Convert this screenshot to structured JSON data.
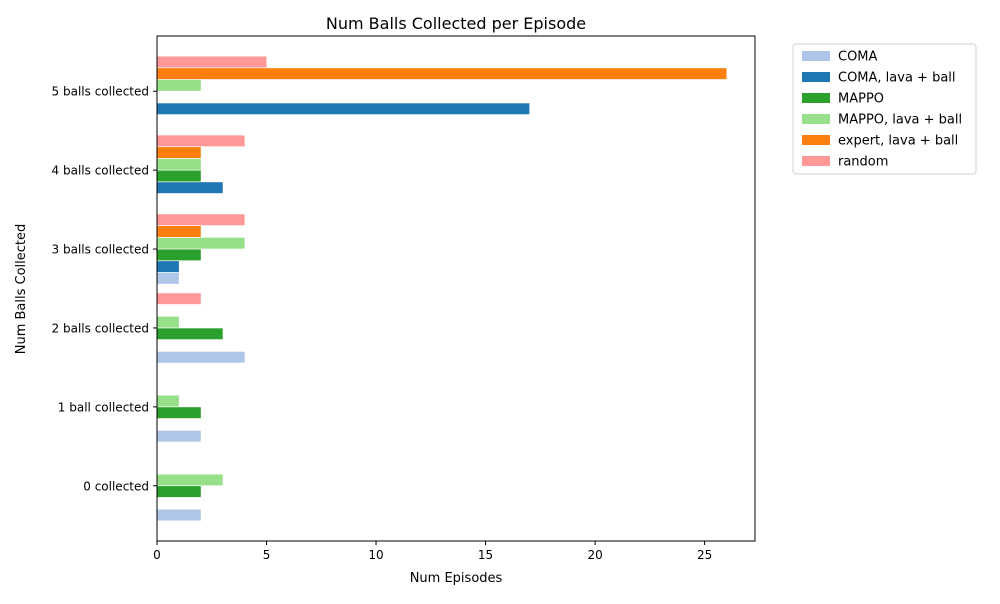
{
  "chart_data": {
    "type": "bar",
    "orientation": "horizontal",
    "title": "Num Balls Collected per Episode",
    "xlabel": "Num Episodes",
    "ylabel": "Num Balls Collected",
    "xlim": [
      0,
      27.3
    ],
    "xticks": [
      0,
      5,
      10,
      15,
      20,
      25
    ],
    "grid": false,
    "legend_position": "outside-top-right",
    "categories": [
      "0 collected",
      "1 ball collected",
      "2 balls collected",
      "3 balls collected",
      "4 balls collected",
      "5 balls collected"
    ],
    "series": [
      {
        "name": "COMA",
        "color": "#aec7e8",
        "values": [
          2,
          2,
          4,
          1,
          0,
          0
        ]
      },
      {
        "name": "COMA, lava + ball",
        "color": "#1f77b4",
        "values": [
          0,
          0,
          0,
          1,
          3,
          17
        ]
      },
      {
        "name": "MAPPO",
        "color": "#2ca02c",
        "values": [
          2,
          2,
          3,
          2,
          2,
          0
        ]
      },
      {
        "name": "MAPPO, lava + ball",
        "color": "#98df8a",
        "values": [
          3,
          1,
          1,
          4,
          2,
          2
        ]
      },
      {
        "name": "expert, lava + ball",
        "color": "#ff7f0e",
        "values": [
          0,
          0,
          0,
          2,
          2,
          26
        ]
      },
      {
        "name": "random",
        "color": "#ff9896",
        "values": [
          0,
          0,
          2,
          4,
          4,
          5
        ]
      }
    ]
  }
}
